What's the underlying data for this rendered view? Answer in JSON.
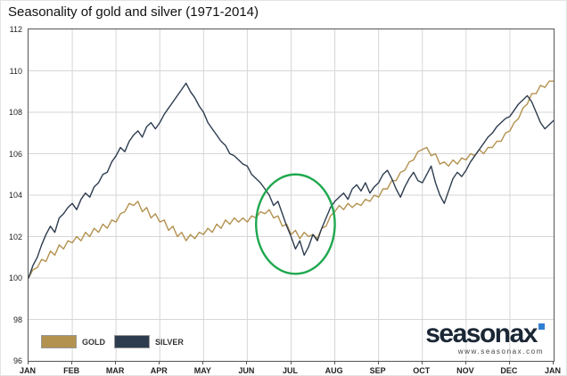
{
  "title": "Seasonality of gold and silver (1971-2014)",
  "branding": {
    "logo_text": "seasonax",
    "logo_url_text": "www.seasonax.com",
    "logo_color": "#1b2735",
    "logo_accent": "#2f7fd0"
  },
  "chart_data": {
    "type": "line",
    "title": "Seasonality of gold and silver (1971-2014)",
    "x_unit": "months",
    "x_tick_labels": [
      "JAN",
      "FEB",
      "MAR",
      "APR",
      "MAY",
      "JUN",
      "JUL",
      "AUG",
      "SEP",
      "OCT",
      "NOV",
      "DEC",
      "JAN"
    ],
    "ylim": [
      96,
      112
    ],
    "y_ticks": [
      96,
      98,
      100,
      102,
      104,
      106,
      108,
      110,
      112
    ],
    "grid": true,
    "legend_position": "bottom-left",
    "series": [
      {
        "name": "GOLD",
        "color": "#b3914f",
        "values": [
          100.0,
          100.4,
          100.5,
          100.9,
          100.8,
          101.3,
          101.1,
          101.6,
          101.4,
          101.8,
          101.7,
          102.0,
          101.8,
          102.2,
          102.0,
          102.4,
          102.2,
          102.6,
          102.4,
          102.8,
          102.7,
          103.1,
          103.2,
          103.6,
          103.5,
          103.7,
          103.2,
          103.4,
          102.9,
          103.1,
          102.7,
          102.8,
          102.3,
          102.5,
          102.0,
          102.2,
          101.8,
          102.1,
          101.9,
          102.2,
          102.1,
          102.4,
          102.2,
          102.6,
          102.4,
          102.8,
          102.6,
          102.9,
          102.7,
          102.9,
          102.7,
          103.0,
          102.9,
          103.2,
          103.1,
          103.3,
          102.9,
          103.0,
          102.5,
          102.6,
          102.1,
          102.3,
          101.9,
          102.2,
          102.0,
          102.1,
          101.9,
          102.4,
          102.5,
          103.0,
          103.2,
          103.5,
          103.3,
          103.6,
          103.4,
          103.6,
          103.5,
          103.8,
          103.7,
          104.0,
          103.9,
          104.3,
          104.3,
          104.7,
          104.7,
          105.1,
          105.2,
          105.6,
          105.7,
          106.1,
          106.2,
          106.3,
          105.9,
          106.0,
          105.5,
          105.6,
          105.4,
          105.7,
          105.5,
          105.8,
          105.7,
          106.0,
          105.9,
          106.2,
          106.0,
          106.3,
          106.3,
          106.6,
          106.6,
          107.0,
          107.1,
          107.5,
          107.7,
          108.2,
          108.4,
          108.9,
          108.9,
          109.3,
          109.2,
          109.5,
          109.5
        ]
      },
      {
        "name": "SILVER",
        "color": "#2d3c4f",
        "values": [
          100.0,
          100.6,
          101.0,
          101.6,
          102.1,
          102.5,
          102.2,
          102.9,
          103.1,
          103.4,
          103.6,
          103.3,
          103.8,
          104.1,
          103.9,
          104.4,
          104.6,
          105.0,
          105.1,
          105.6,
          105.9,
          106.3,
          106.1,
          106.6,
          106.9,
          107.1,
          106.8,
          107.3,
          107.5,
          107.2,
          107.5,
          107.9,
          108.2,
          108.5,
          108.8,
          109.1,
          109.4,
          109.0,
          108.7,
          108.3,
          108.0,
          107.5,
          107.2,
          106.9,
          106.6,
          106.4,
          106.0,
          105.9,
          105.7,
          105.5,
          105.4,
          105.0,
          104.8,
          104.6,
          104.3,
          104.0,
          103.5,
          103.7,
          103.1,
          102.5,
          102.0,
          101.4,
          101.8,
          101.1,
          101.5,
          102.1,
          101.8,
          102.4,
          102.9,
          103.4,
          103.7,
          103.9,
          104.1,
          103.8,
          104.3,
          104.5,
          104.2,
          104.6,
          104.1,
          104.4,
          104.6,
          105.0,
          105.2,
          104.8,
          104.3,
          103.9,
          104.4,
          104.8,
          105.1,
          104.7,
          104.6,
          105.0,
          105.4,
          104.6,
          104.0,
          103.6,
          104.2,
          104.8,
          105.1,
          104.9,
          105.2,
          105.6,
          105.9,
          106.2,
          106.5,
          106.8,
          107.0,
          107.3,
          107.5,
          107.7,
          107.8,
          108.1,
          108.4,
          108.6,
          108.8,
          108.5,
          108.0,
          107.5,
          107.2,
          107.4,
          107.6
        ]
      }
    ],
    "annotation": {
      "type": "ellipse",
      "cx_month": 6.1,
      "cy_value": 102.6,
      "rx_month": 0.9,
      "ry_value": 2.4,
      "color": "#1fa84f"
    }
  }
}
